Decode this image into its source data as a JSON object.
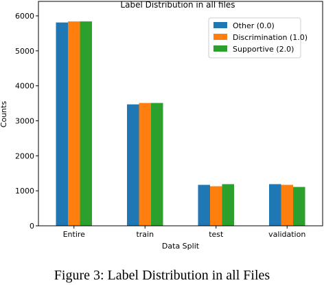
{
  "chart_data": {
    "type": "bar",
    "title": "Label Distribution in all files",
    "xlabel": "Data Split",
    "ylabel": "Counts",
    "ylim": [
      0,
      6000
    ],
    "yticks": [
      0,
      1000,
      2000,
      3000,
      4000,
      5000,
      6000
    ],
    "categories": [
      "Entire",
      "train",
      "test",
      "validation"
    ],
    "series": [
      {
        "name": "Other (0.0)",
        "color": "#1f77b4",
        "values": [
          5810,
          3470,
          1170,
          1190
        ]
      },
      {
        "name": "Discrimination (1.0)",
        "color": "#ff7f0e",
        "values": [
          5840,
          3510,
          1130,
          1170
        ]
      },
      {
        "name": "Supportive (2.0)",
        "color": "#2ca02c",
        "values": [
          5840,
          3510,
          1190,
          1110
        ]
      }
    ],
    "legend_position": "top-right",
    "grid": false
  },
  "caption": "Figure 3: Label Distribution in all Files"
}
